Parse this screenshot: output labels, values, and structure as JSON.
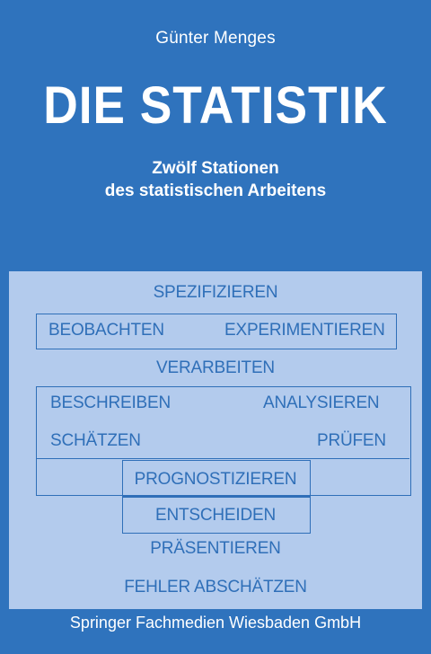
{
  "author": "Günter Menges",
  "title": "DIE STATISTIK",
  "subtitle": [
    "Zwölf Stationen",
    "des statistischen Arbeitens"
  ],
  "diagram": {
    "spezifizieren": "SPEZIFIZIEREN",
    "beobachten": "BEOBACHTEN",
    "experimentieren": "EXPERIMENTIEREN",
    "verarbeiten": "VERARBEITEN",
    "beschreiben": "BESCHREIBEN",
    "analysieren": "ANALYSIEREN",
    "schaetzen": "SCHÄTZEN",
    "pruefen": "PRÜFEN",
    "prognostizieren": "PROGNOSTIZIEREN",
    "entscheiden": "ENTSCHEIDEN",
    "praesentieren": "PRÄSENTIEREN",
    "fehler_abschaetzen": "FEHLER ABSCHÄTZEN"
  },
  "publisher": "Springer Fachmedien Wiesbaden GmbH",
  "colors": {
    "background": "#2f73bd",
    "panel": "#b3cbed",
    "text": "#ffffff"
  }
}
